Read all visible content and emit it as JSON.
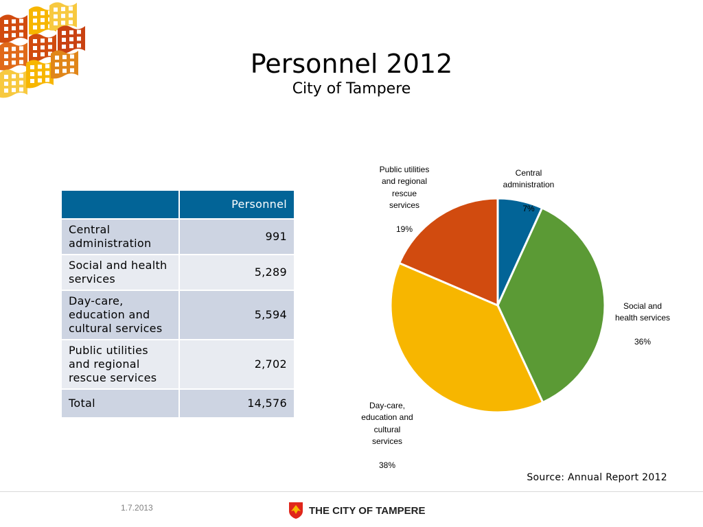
{
  "header": {
    "title": "Personnel 2012",
    "subtitle": "City of Tampere"
  },
  "table": {
    "header": "Personnel",
    "rows": [
      {
        "label": "Central administration",
        "value": "991"
      },
      {
        "label": "Social and health services",
        "value": "5,289"
      },
      {
        "label": "Day-care, education and cultural services",
        "value": "5,594"
      },
      {
        "label": "Public utilities and regional rescue services",
        "value": "2,702"
      },
      {
        "label": "Total",
        "value": "14,576"
      }
    ]
  },
  "chart_data": {
    "type": "pie",
    "categories": [
      "Central administration",
      "Social and health services",
      "Day-care, education and cultural services",
      "Public utilities and regional rescue services"
    ],
    "values": [
      991,
      5289,
      5594,
      2702
    ],
    "percent_labels": [
      "7%",
      "36%",
      "38%",
      "19%"
    ],
    "colors": [
      "#026497",
      "#5b9a35",
      "#f7b600",
      "#d14b0f"
    ],
    "legend": "none"
  },
  "source": "Source: Annual Report 2012",
  "footer": {
    "date": "1.7.2013",
    "brand": "THE CITY OF TAMPERE"
  }
}
